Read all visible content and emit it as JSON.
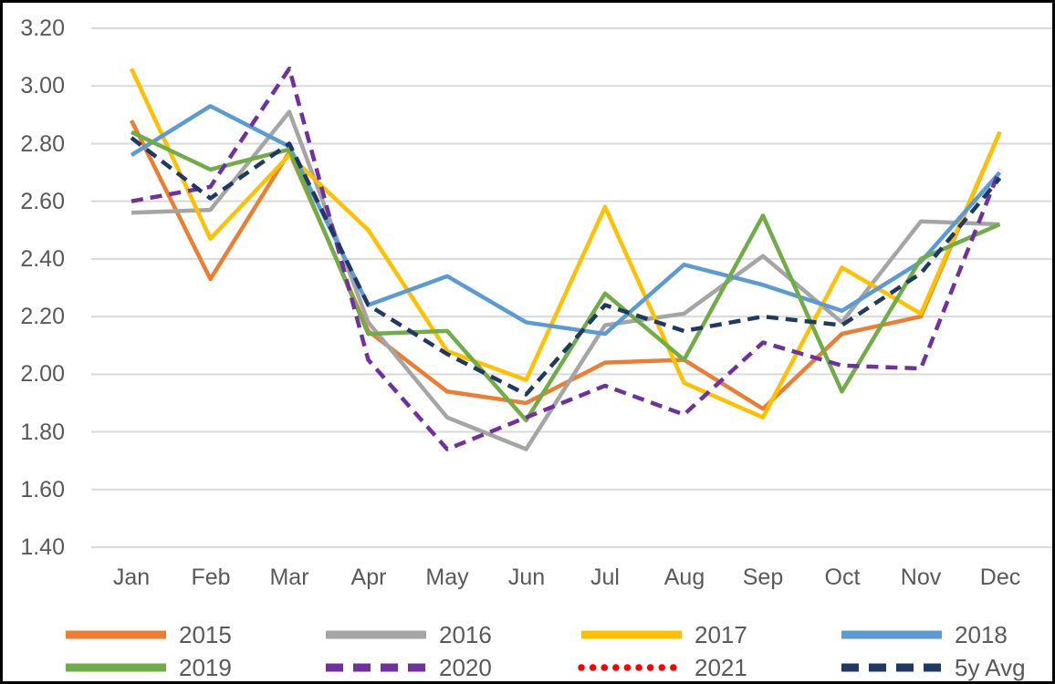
{
  "chart_data": {
    "type": "line",
    "title": "",
    "xlabel": "",
    "ylabel": "",
    "categories": [
      "Jan",
      "Feb",
      "Mar",
      "Apr",
      "May",
      "Jun",
      "Jul",
      "Aug",
      "Sep",
      "Oct",
      "Nov",
      "Dec"
    ],
    "y_tick_labels": [
      "3.20",
      "3.00",
      "2.80",
      "2.60",
      "2.40",
      "2.20",
      "2.00",
      "1.80",
      "1.60",
      "1.40"
    ],
    "ylim": [
      1.4,
      3.2
    ],
    "y_step": 0.2,
    "grid": "horizontal",
    "legend_position": "bottom",
    "series": [
      {
        "name": "2015",
        "color": "#ED7D31",
        "style": "solid",
        "values": [
          2.88,
          2.33,
          2.77,
          2.15,
          1.94,
          1.9,
          2.04,
          2.05,
          1.88,
          2.14,
          2.2,
          2.84
        ]
      },
      {
        "name": "2016",
        "color": "#A5A5A5",
        "style": "solid",
        "values": [
          2.56,
          2.57,
          2.91,
          2.18,
          1.85,
          1.74,
          2.17,
          2.21,
          2.41,
          2.18,
          2.53,
          2.52
        ]
      },
      {
        "name": "2017",
        "color": "#FFC000",
        "style": "solid",
        "values": [
          3.06,
          2.47,
          2.76,
          2.5,
          2.08,
          1.98,
          2.58,
          1.97,
          1.85,
          2.37,
          2.21,
          2.84
        ]
      },
      {
        "name": "2018",
        "color": "#5B9BD5",
        "style": "solid",
        "values": [
          2.76,
          2.93,
          2.79,
          2.24,
          2.34,
          2.18,
          2.14,
          2.38,
          2.31,
          2.22,
          2.39,
          2.7
        ]
      },
      {
        "name": "2019",
        "color": "#70AD47",
        "style": "solid",
        "values": [
          2.84,
          2.71,
          2.78,
          2.14,
          2.15,
          1.84,
          2.28,
          2.05,
          2.55,
          1.94,
          2.4,
          2.52
        ]
      },
      {
        "name": "2020",
        "color": "#7030A0",
        "style": "dashed",
        "values": [
          2.6,
          2.65,
          3.06,
          2.05,
          1.74,
          1.85,
          1.96,
          1.86,
          2.11,
          2.03,
          2.02,
          2.71
        ]
      },
      {
        "name": "2021",
        "color": "#FF0000",
        "style": "dotted",
        "values": []
      },
      {
        "name": "5y Avg",
        "color": "#203864",
        "style": "dashed",
        "values": [
          2.82,
          2.61,
          2.8,
          2.24,
          2.07,
          1.93,
          2.24,
          2.15,
          2.2,
          2.17,
          2.35,
          2.68
        ]
      }
    ]
  },
  "colors": {
    "background": "#FFFFFF",
    "border": "#000000",
    "gridline": "#D9D9D9",
    "axis_text": "#595959"
  }
}
